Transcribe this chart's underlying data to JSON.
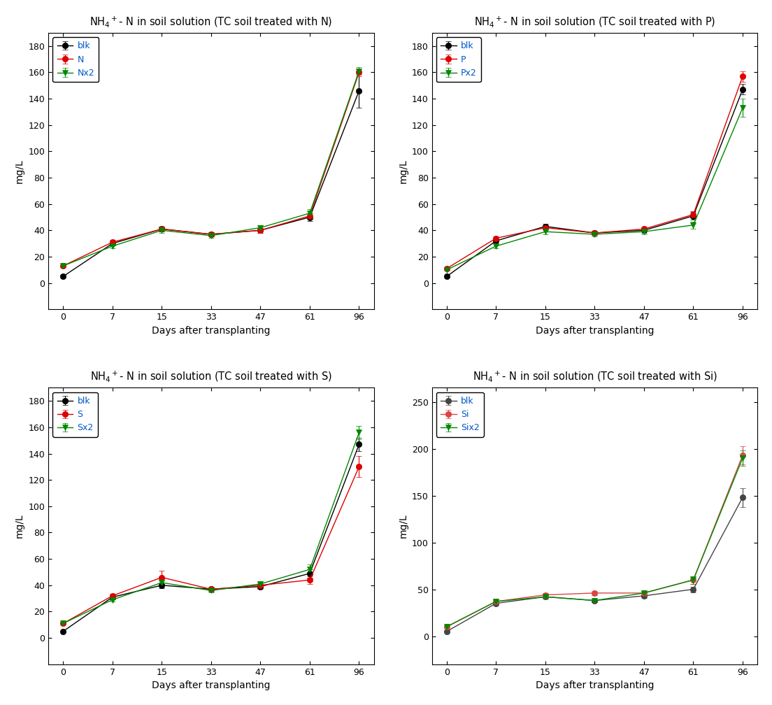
{
  "x": [
    0,
    7,
    15,
    33,
    47,
    61,
    96
  ],
  "x_labels": [
    "0",
    "7",
    "15",
    "33",
    "47",
    "61",
    "96"
  ],
  "panels": [
    {
      "title_parts": [
        "NH",
        "4",
        "+",
        "- N in soil solution (TC soil treated with N)"
      ],
      "title_str": "NH$_4$$^+$- N in soil solution (TC soil treated with N)",
      "ylabel": "mg/L",
      "xlabel": "Days after transplanting",
      "ylim": [
        -20,
        190
      ],
      "yticks": [
        0,
        20,
        40,
        60,
        80,
        100,
        120,
        140,
        160,
        180
      ],
      "series": [
        {
          "label": "blk",
          "color": "#000000",
          "marker": "o",
          "markersize": 6,
          "y": [
            5,
            30,
            41,
            37,
            40,
            50,
            146
          ],
          "yerr": [
            1.0,
            1.5,
            2.0,
            1.5,
            2.0,
            3.0,
            13.0
          ]
        },
        {
          "label": "N",
          "color": "#dd0000",
          "marker": "o",
          "markersize": 6,
          "y": [
            13,
            31,
            41,
            37,
            40,
            51,
            160
          ],
          "yerr": [
            0.5,
            1.5,
            2.0,
            1.5,
            2.0,
            2.0,
            3.0
          ]
        },
        {
          "label": "Nx2",
          "color": "#008800",
          "marker": "v",
          "markersize": 6,
          "y": [
            13,
            28,
            40,
            36,
            42,
            53,
            161
          ],
          "yerr": [
            0.5,
            1.5,
            2.0,
            1.5,
            2.0,
            3.0,
            3.0
          ]
        }
      ]
    },
    {
      "title_str": "NH$_4$$^+$- N in soil solution (TC soil treated with P)",
      "ylabel": "mg/L",
      "xlabel": "Days after transplanting",
      "ylim": [
        -20,
        190
      ],
      "yticks": [
        0,
        20,
        40,
        60,
        80,
        100,
        120,
        140,
        160,
        180
      ],
      "series": [
        {
          "label": "blk",
          "color": "#000000",
          "marker": "o",
          "markersize": 6,
          "y": [
            5,
            32,
            43,
            38,
            40,
            51,
            147
          ],
          "yerr": [
            0.5,
            1.5,
            2.0,
            1.5,
            2.0,
            3.0,
            4.0
          ]
        },
        {
          "label": "P",
          "color": "#dd0000",
          "marker": "o",
          "markersize": 6,
          "y": [
            11,
            34,
            42,
            38,
            41,
            52,
            157
          ],
          "yerr": [
            0.5,
            1.5,
            2.0,
            1.5,
            2.0,
            2.5,
            4.0
          ]
        },
        {
          "label": "Px2",
          "color": "#008800",
          "marker": "v",
          "markersize": 6,
          "y": [
            10,
            28,
            39,
            37,
            39,
            44,
            133
          ],
          "yerr": [
            0.5,
            1.5,
            2.0,
            1.5,
            2.0,
            2.5,
            7.0
          ]
        }
      ]
    },
    {
      "title_str": "NH$_4$$^+$- N in soil solution (TC soil treated with S)",
      "ylabel": "mg/L",
      "xlabel": "Days after transplanting",
      "ylim": [
        -20,
        190
      ],
      "yticks": [
        0,
        20,
        40,
        60,
        80,
        100,
        120,
        140,
        160,
        180
      ],
      "series": [
        {
          "label": "blk",
          "color": "#000000",
          "marker": "o",
          "markersize": 6,
          "y": [
            5,
            31,
            40,
            37,
            39,
            49,
            147
          ],
          "yerr": [
            0.5,
            1.5,
            2.0,
            1.5,
            2.0,
            3.0,
            5.0
          ]
        },
        {
          "label": "S",
          "color": "#dd0000",
          "marker": "o",
          "markersize": 6,
          "y": [
            11,
            32,
            46,
            37,
            40,
            44,
            130
          ],
          "yerr": [
            0.5,
            1.5,
            5.0,
            2.0,
            2.0,
            3.0,
            8.0
          ]
        },
        {
          "label": "Sx2",
          "color": "#008800",
          "marker": "v",
          "markersize": 6,
          "y": [
            11,
            29,
            42,
            36,
            41,
            52,
            156
          ],
          "yerr": [
            0.5,
            1.5,
            2.0,
            1.5,
            2.0,
            4.0,
            5.0
          ]
        }
      ]
    },
    {
      "title_str": "NH$_4$$^+$- N in soil solution (TC soil treated with Si)",
      "ylabel": "mg/L",
      "xlabel": "Days after transplanting",
      "ylim": [
        -30,
        265
      ],
      "yticks": [
        0,
        50,
        100,
        150,
        200,
        250
      ],
      "series": [
        {
          "label": "blk",
          "color": "#444444",
          "marker": "o",
          "markersize": 6,
          "y": [
            5,
            35,
            42,
            38,
            43,
            50,
            148
          ],
          "yerr": [
            0.5,
            2.0,
            2.0,
            1.5,
            2.0,
            3.0,
            10.0
          ]
        },
        {
          "label": "Si",
          "color": "#dd4444",
          "marker": "o",
          "markersize": 6,
          "y": [
            10,
            37,
            44,
            46,
            46,
            60,
            193
          ],
          "yerr": [
            0.5,
            2.0,
            2.0,
            2.0,
            2.0,
            4.0,
            10.0
          ]
        },
        {
          "label": "Six2",
          "color": "#008800",
          "marker": "v",
          "markersize": 6,
          "y": [
            10,
            37,
            42,
            38,
            46,
            60,
            190
          ],
          "yerr": [
            0.5,
            2.0,
            2.0,
            1.5,
            2.0,
            4.0,
            8.0
          ]
        }
      ]
    }
  ],
  "background_color": "#ffffff",
  "line_width": 1.0,
  "capsize": 3,
  "elinewidth": 0.8,
  "legend_text_color": "#0055cc",
  "title_fontsize": 10.5,
  "tick_labelsize": 9,
  "axis_labelsize": 10
}
